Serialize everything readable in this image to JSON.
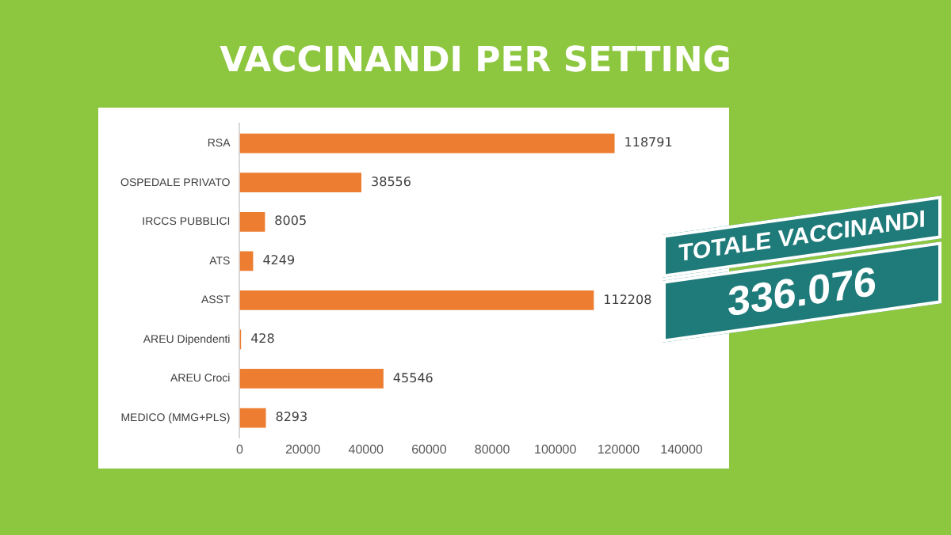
{
  "chart_data": {
    "type": "bar",
    "orientation": "horizontal",
    "title": "VACCINANDI PER SETTING",
    "categories": [
      "RSA",
      "OSPEDALE PRIVATO",
      "IRCCS PUBBLICI",
      "ATS",
      "ASST",
      "AREU Dipendenti",
      "AREU Croci",
      "MEDICO (MMG+PLS)"
    ],
    "values": [
      118791,
      38556,
      8005,
      4249,
      112208,
      428,
      45546,
      8293
    ],
    "color": "#ed7d31",
    "xlim": [
      0,
      140000
    ],
    "xticks": [
      0,
      20000,
      40000,
      60000,
      80000,
      100000,
      120000,
      140000
    ],
    "grid": false,
    "legend": false,
    "data_labels": true,
    "annotations": [
      "TOTALE VACCINANDI",
      "336.076"
    ]
  }
}
